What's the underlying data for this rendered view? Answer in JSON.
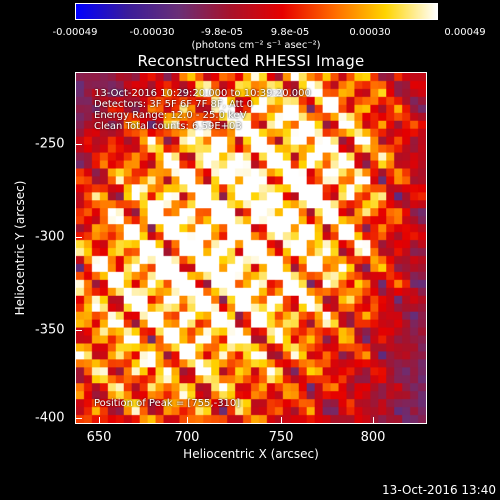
{
  "colorbar": {
    "labels": [
      "-0.00049",
      "-0.00030",
      "-9.8e-05",
      "9.8e-05",
      "0.00030",
      "0.00049"
    ],
    "units": "(photons cm⁻² s⁻¹ asec⁻²)",
    "gradient": [
      "#0000ff",
      "#3a1c9a",
      "#6a2f76",
      "#a8122a",
      "#e60000",
      "#ff6a00",
      "#ffd400",
      "#ffffff"
    ]
  },
  "title": "Reconstructed RHESSI Image",
  "annotations": {
    "time_range": "13-Oct-2016 10:29:20.000 to 10:39:20.000",
    "detectors": "Detectors: 3F 5F 6F 7F 8F, Att 0",
    "energy": "Energy Range: 12.0 - 25.0 keV",
    "clean": "Clean    Total counts: 6.59E+03",
    "peak": "Position of Peak = [755,-310]"
  },
  "axes": {
    "xlabel": "Heliocentric X (arcsec)",
    "ylabel": "Heliocentric Y (arcsec)",
    "xticks": [
      "650",
      "700",
      "750",
      "800"
    ],
    "yticks": [
      "-250",
      "-300",
      "-350",
      "-400"
    ]
  },
  "timestamp": "13-Oct-2016 13:40",
  "chart_data": {
    "type": "heatmap",
    "title": "Reconstructed RHESSI Image",
    "xlabel": "Heliocentric X (arcsec)",
    "ylabel": "Heliocentric Y (arcsec)",
    "xlim": [
      640,
      828
    ],
    "ylim": [
      -403,
      -215
    ],
    "x_ticks": [
      650,
      700,
      750,
      800
    ],
    "y_ticks": [
      -250,
      -300,
      -350,
      -400
    ],
    "color_range": [
      -0.00049,
      0.00049
    ],
    "peak_position": [
      755,
      -310
    ],
    "bright_regions": [
      {
        "x": 730,
        "y": -290,
        "strength": 1.0
      },
      {
        "x": 690,
        "y": -345,
        "strength": 0.95
      },
      {
        "x": 760,
        "y": -240,
        "strength": 0.7
      }
    ]
  }
}
